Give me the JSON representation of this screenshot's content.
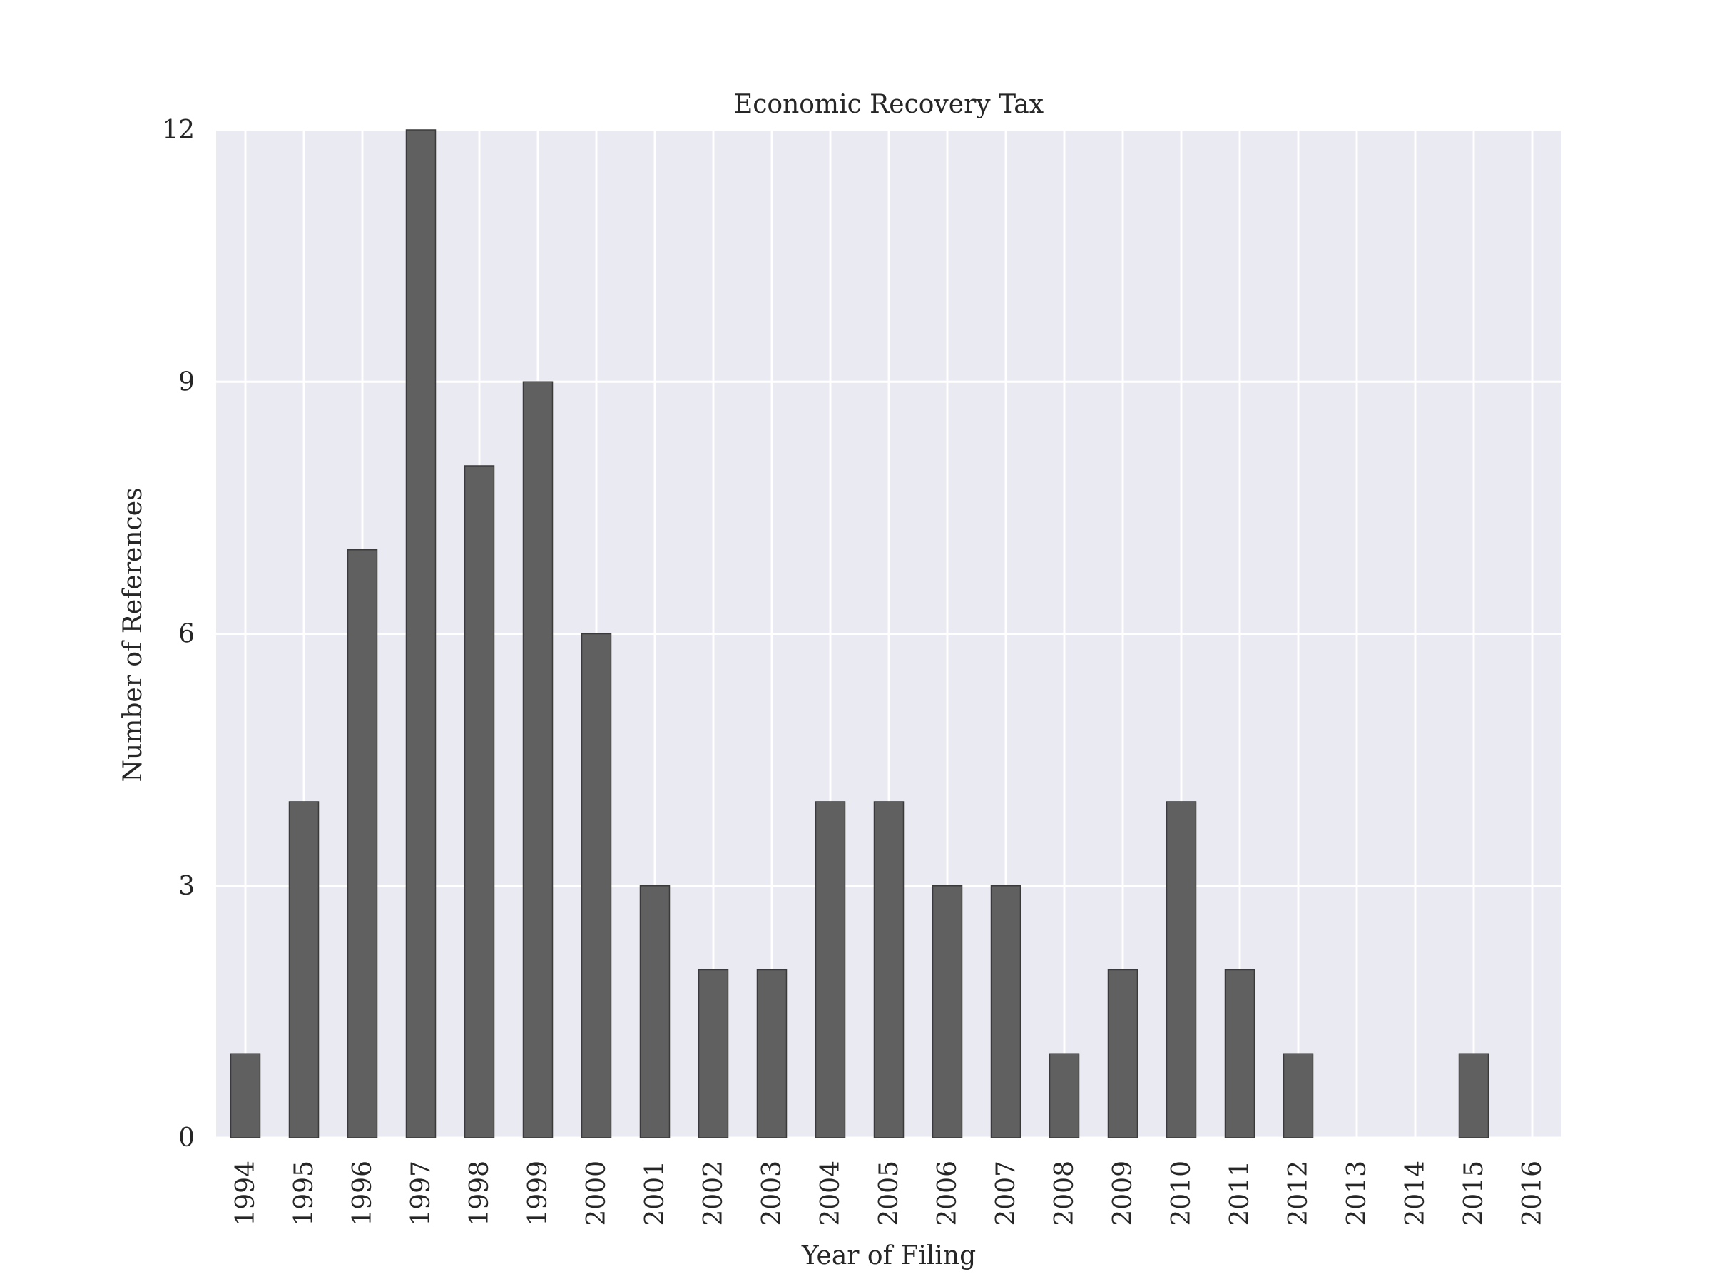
{
  "chart_data": {
    "type": "bar",
    "title": "Economic Recovery Tax",
    "xlabel": "Year of Filing",
    "ylabel": "Number of References",
    "categories": [
      "1994",
      "1995",
      "1996",
      "1997",
      "1998",
      "1999",
      "2000",
      "2001",
      "2002",
      "2003",
      "2004",
      "2005",
      "2006",
      "2007",
      "2008",
      "2009",
      "2010",
      "2011",
      "2012",
      "2013",
      "2014",
      "2015",
      "2016"
    ],
    "values": [
      1,
      4,
      7,
      12,
      8,
      9,
      6,
      3,
      2,
      2,
      4,
      4,
      3,
      3,
      1,
      2,
      4,
      2,
      1,
      0,
      0,
      1,
      0
    ],
    "ylim": [
      0,
      12
    ],
    "yticks": [
      0,
      3,
      6,
      9,
      12
    ],
    "ytick_labels": [
      "0",
      "3",
      "6",
      "9",
      "12"
    ],
    "grid": true,
    "colors": {
      "background": "#eaeaf2",
      "grid": "#ffffff",
      "bar": "#606060",
      "bar_edge": "#3a3a3a",
      "text": "#262626"
    }
  }
}
